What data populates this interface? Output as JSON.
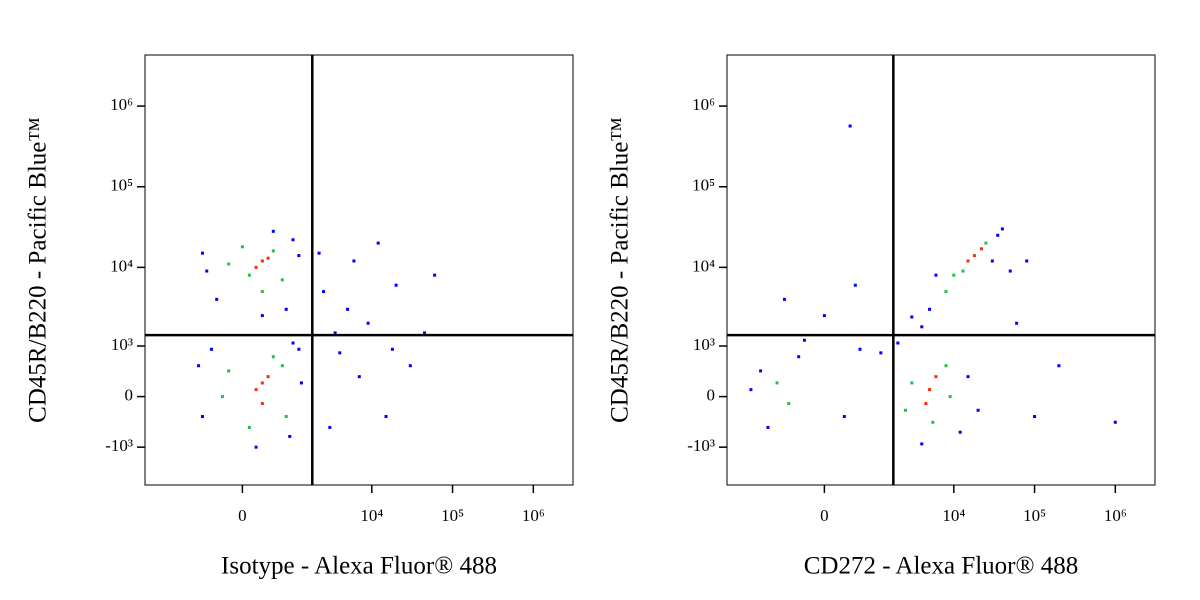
{
  "chart_data": [
    {
      "type": "scatter",
      "x_label": "Isotype - Alexa Fluor® 488",
      "y_label": "CD45R/B220 - Pacific Blue™",
      "xscale": "biexponential",
      "yscale": "biexponential",
      "xlim": [
        -4000,
        3100000
      ],
      "ylim": [
        -3100,
        4300000
      ],
      "xticks": [
        0,
        {
          "value": 10000,
          "label": "10⁴"
        },
        {
          "value": 100000,
          "label": "10⁵"
        },
        {
          "value": 1000000,
          "label": "10⁶"
        }
      ],
      "yticks": [
        {
          "value": -1000,
          "label": "-10³"
        },
        0,
        {
          "value": 1000,
          "label": "10³"
        },
        {
          "value": 10000,
          "label": "10⁴"
        },
        {
          "value": 100000,
          "label": "10⁵"
        },
        {
          "value": 1000000,
          "label": "10⁶"
        }
      ],
      "gates": {
        "x": 1800,
        "y": 1400
      },
      "series": [
        {
          "color": "#0000ff",
          "x": [
            -700,
            1300,
            -500,
            900,
            1200,
            -800,
            200,
            1000,
            -600,
            1200,
            -400,
            1000,
            300,
            -700,
            800,
            500,
            2500,
            4000,
            6000,
            9000,
            15000,
            3000,
            20000,
            45000,
            7000,
            12000,
            30000,
            5000,
            2200,
            60000,
            3500,
            18000
          ],
          "values": [
            -300,
            200,
            900,
            -700,
            900,
            500,
            -1000,
            1100,
            9000,
            14000,
            4000,
            22000,
            2500,
            15000,
            3000,
            28000,
            5000,
            800,
            12000,
            2000,
            -300,
            -500,
            6000,
            1500,
            300,
            20000,
            500,
            3000,
            15000,
            8000,
            1500,
            900
          ]
        },
        {
          "color": "#20c040",
          "x": [
            -300,
            700,
            -200,
            800,
            100,
            500,
            100,
            500,
            -200,
            700,
            300,
            0
          ],
          "values": [
            0,
            500,
            400,
            -300,
            -500,
            700,
            8000,
            16000,
            11000,
            7000,
            5000,
            18000
          ]
        },
        {
          "color": "#ff2a00",
          "x": [
            300,
            200,
            400,
            300,
            300,
            200,
            400
          ],
          "values": [
            200,
            100,
            300,
            -100,
            12000,
            10000,
            13000
          ]
        }
      ]
    },
    {
      "type": "scatter",
      "x_label": "CD272 - Alexa Fluor® 488",
      "y_label": "CD45R/B220 - Pacific Blue™",
      "xscale": "biexponential",
      "yscale": "biexponential",
      "xlim": [
        -4000,
        3100000
      ],
      "ylim": [
        -3100,
        4300000
      ],
      "xticks": [
        0,
        {
          "value": 10000,
          "label": "10⁴"
        },
        {
          "value": 100000,
          "label": "10⁵"
        },
        {
          "value": 1000000,
          "label": "10⁶"
        }
      ],
      "yticks": [
        {
          "value": -1000,
          "label": "-10³"
        },
        0,
        {
          "value": 1000,
          "label": "10³"
        },
        {
          "value": 10000,
          "label": "10⁴"
        },
        {
          "value": 100000,
          "label": "10⁵"
        },
        {
          "value": 1000000,
          "label": "10⁶"
        }
      ],
      "gates": {
        "x": 1750,
        "y": 1400
      },
      "series": [
        {
          "color": "#0000ff",
          "x": [
            1200,
            15000,
            4000,
            20000,
            2000,
            12000,
            -1500,
            -400,
            -1200,
            -300,
            300,
            600,
            -2000,
            0,
            -700,
            500,
            5000,
            35000,
            6000,
            30000,
            40000,
            4000,
            50000,
            3000,
            100000,
            200000,
            60000,
            1000000,
            80000,
            400
          ],
          "values": [
            800,
            300,
            -900,
            -200,
            1100,
            -600,
            400,
            700,
            -500,
            1200,
            -300,
            900,
            100,
            2500,
            4000,
            6000,
            3000,
            25000,
            8000,
            12000,
            30000,
            1800,
            9000,
            2400,
            -300,
            500,
            2000,
            -400,
            12000,
            566000
          ]
        },
        {
          "color": "#20c040",
          "x": [
            3000,
            8000,
            5500,
            2500,
            9000,
            -900,
            -600,
            10000,
            25000,
            8000,
            13000
          ],
          "values": [
            200,
            500,
            -400,
            -200,
            0,
            200,
            -100,
            8000,
            20000,
            5000,
            9000
          ]
        },
        {
          "color": "#ff2a00",
          "x": [
            5000,
            6000,
            4500,
            18000,
            22000,
            15000
          ],
          "values": [
            100,
            300,
            -100,
            14000,
            17000,
            12000
          ]
        }
      ]
    }
  ]
}
